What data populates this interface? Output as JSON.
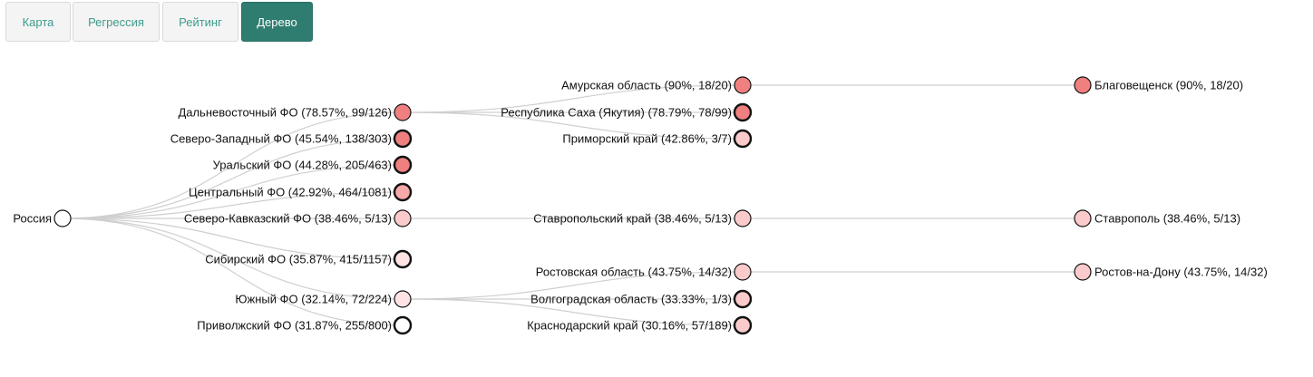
{
  "tabs": [
    {
      "label": "Карта",
      "active": false
    },
    {
      "label": "Регрессия",
      "active": false
    },
    {
      "label": "Рейтинг",
      "active": false
    },
    {
      "label": "Дерево",
      "active": true
    }
  ],
  "colors": {
    "tab_text": "#3f9b8c",
    "tab_active_bg": "#2f7d70",
    "node_high": "#f08080",
    "node_mid": "#f7a9a9",
    "node_low": "#fbcaca",
    "node_lowest": "#fde3e3",
    "node_empty": "#ffffff",
    "link": "#cfcfcf"
  },
  "tree": {
    "label": "Россия",
    "nodes": {
      "root": {
        "label": "Россия",
        "fill": "#ffffff",
        "thick": false
      },
      "dfo": {
        "label": "Дальневосточный ФО (78.57%, 99/126)",
        "fill": "#f08080",
        "thick": false
      },
      "szfo": {
        "label": "Северо-Западный ФО (45.54%, 138/303)",
        "fill": "#f08080",
        "thick": true
      },
      "urfo": {
        "label": "Уральский ФО (44.28%, 205/463)",
        "fill": "#f08080",
        "thick": true
      },
      "cfo": {
        "label": "Центральный ФО (42.92%, 464/1081)",
        "fill": "#f7a9a9",
        "thick": true
      },
      "skfo": {
        "label": "Северо-Кавказский ФО (38.46%, 5/13)",
        "fill": "#fbcaca",
        "thick": false
      },
      "sfo": {
        "label": "Сибирский ФО (35.87%, 415/1157)",
        "fill": "#fde3e3",
        "thick": true
      },
      "yufo": {
        "label": "Южный ФО (32.14%, 72/224)",
        "fill": "#fde3e3",
        "thick": false
      },
      "pfo": {
        "label": "Приволжский ФО (31.87%, 255/800)",
        "fill": "#ffffff",
        "thick": true
      },
      "amur": {
        "label": "Амурская область (90%, 18/20)",
        "fill": "#f08080",
        "thick": false
      },
      "saha": {
        "label": "Республика Саха (Якутия) (78.79%, 78/99)",
        "fill": "#f08080",
        "thick": true
      },
      "prim": {
        "label": "Приморский край (42.86%, 3/7)",
        "fill": "#fbcaca",
        "thick": true
      },
      "stavk": {
        "label": "Ставропольский край (38.46%, 5/13)",
        "fill": "#fbcaca",
        "thick": false
      },
      "rost": {
        "label": "Ростовская область (43.75%, 14/32)",
        "fill": "#fbcaca",
        "thick": false
      },
      "volg": {
        "label": "Волгоградская область (33.33%, 1/3)",
        "fill": "#fbcaca",
        "thick": true
      },
      "kras": {
        "label": "Краснодарский край (30.16%, 57/189)",
        "fill": "#fbcaca",
        "thick": true
      },
      "blag": {
        "label": "Благовещенск (90%, 18/20)",
        "fill": "#f08080",
        "thick": false
      },
      "stav": {
        "label": "Ставрополь (38.46%, 5/13)",
        "fill": "#fbcaca",
        "thick": false
      },
      "rnd": {
        "label": "Ростов-на-Дону (43.75%, 14/32)",
        "fill": "#fbcaca",
        "thick": false
      }
    },
    "links": [
      [
        "root",
        "dfo"
      ],
      [
        "root",
        "szfo"
      ],
      [
        "root",
        "urfo"
      ],
      [
        "root",
        "cfo"
      ],
      [
        "root",
        "skfo"
      ],
      [
        "root",
        "sfo"
      ],
      [
        "root",
        "yufo"
      ],
      [
        "root",
        "pfo"
      ],
      [
        "dfo",
        "amur"
      ],
      [
        "dfo",
        "saha"
      ],
      [
        "dfo",
        "prim"
      ],
      [
        "skfo",
        "stavk"
      ],
      [
        "yufo",
        "rost"
      ],
      [
        "yufo",
        "volg"
      ],
      [
        "yufo",
        "kras"
      ],
      [
        "amur",
        "blag"
      ],
      [
        "stavk",
        "stav"
      ],
      [
        "rost",
        "rnd"
      ]
    ]
  }
}
